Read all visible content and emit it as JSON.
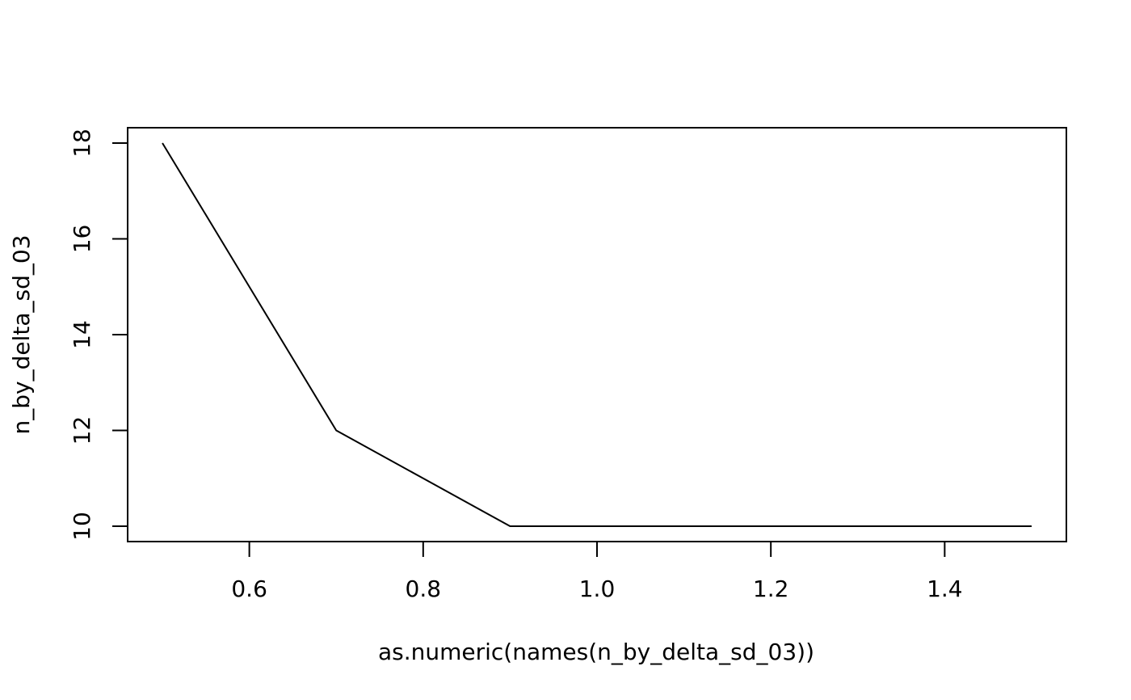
{
  "chart_data": {
    "type": "line",
    "title": "",
    "xlabel": "as.numeric(names(n_by_delta_sd_03))",
    "ylabel": "n_by_delta_sd_03",
    "x": [
      0.5,
      0.6,
      0.7,
      0.8,
      0.9,
      1.0,
      1.1,
      1.2,
      1.3,
      1.4,
      1.5
    ],
    "series": [
      {
        "values": [
          18,
          15,
          12,
          11,
          10,
          10,
          10,
          10,
          10,
          10,
          10
        ]
      }
    ],
    "xlim": [
      0.46,
      1.54
    ],
    "ylim": [
      9.68,
      18.32
    ],
    "xticks": [
      0.6,
      0.8,
      1.0,
      1.2,
      1.4
    ],
    "xtick_labels": [
      "0.6",
      "0.8",
      "1.0",
      "1.2",
      "1.4"
    ],
    "yticks": [
      10,
      12,
      14,
      16,
      18
    ],
    "ytick_labels": [
      "10",
      "12",
      "14",
      "16",
      "18"
    ],
    "grid": false,
    "line_color": "#000000"
  }
}
